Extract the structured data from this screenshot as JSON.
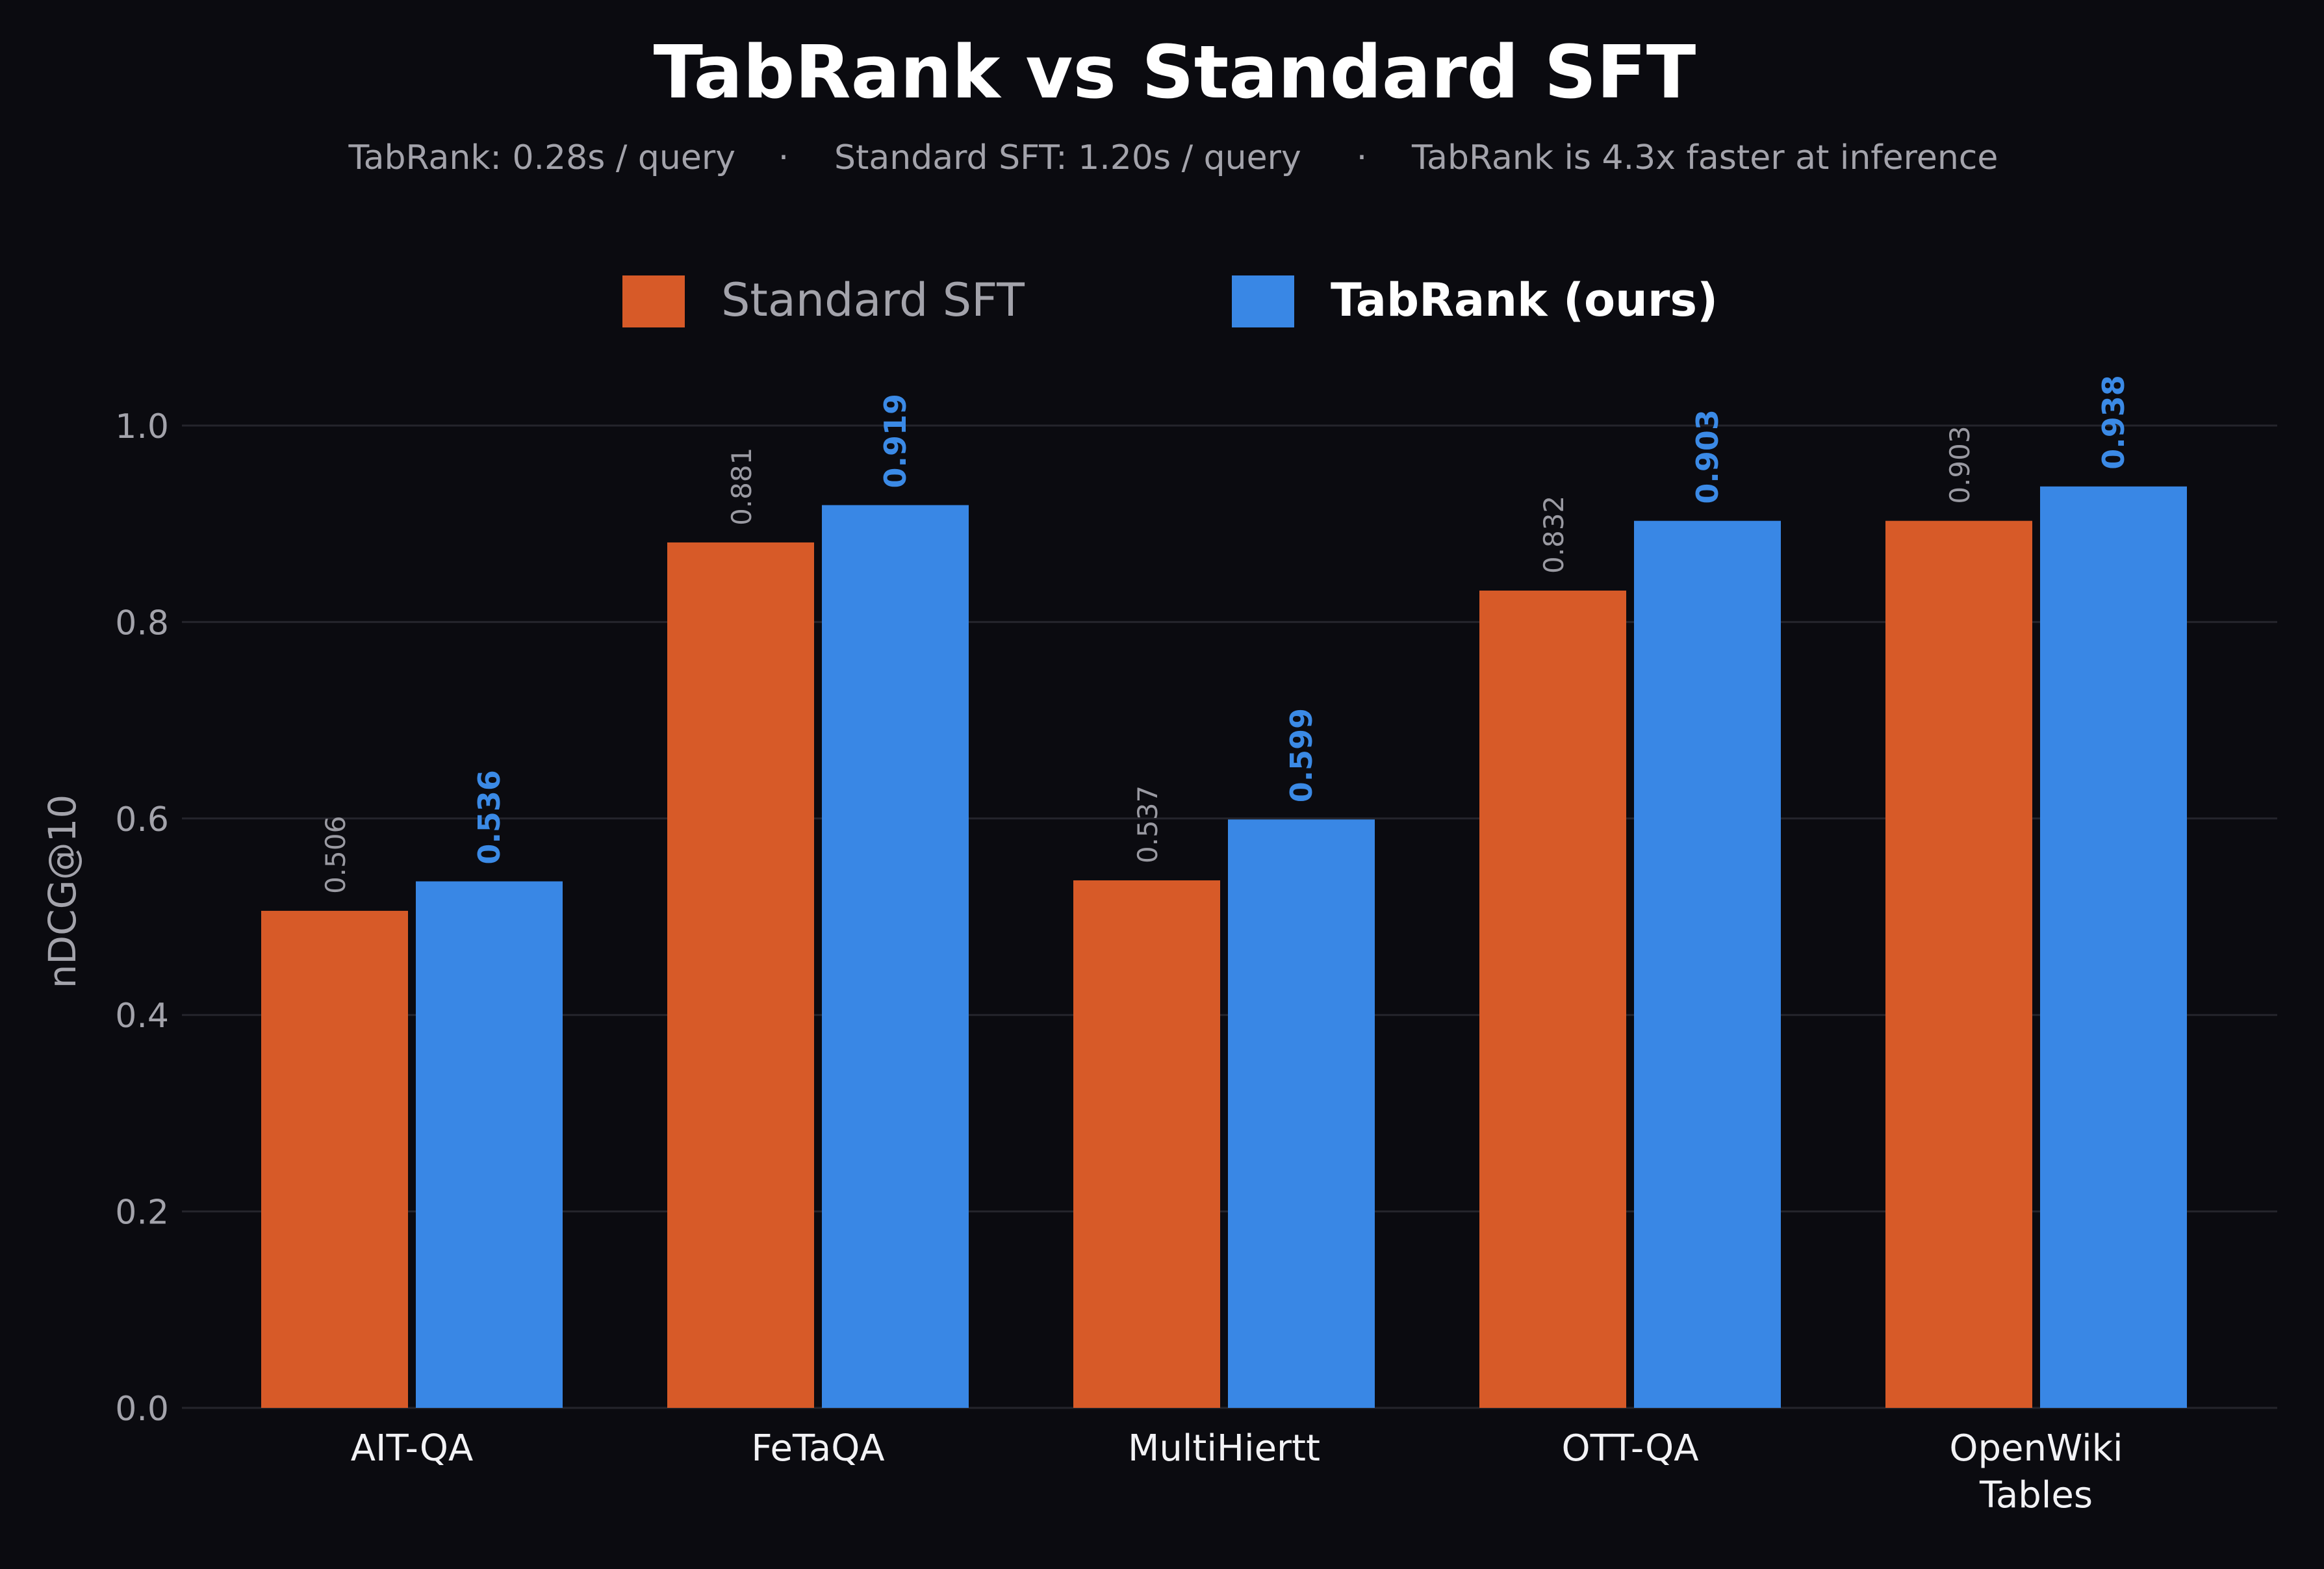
{
  "chart_data": {
    "type": "bar",
    "title": "TabRank vs Standard SFT",
    "subtitle": {
      "parts": [
        "TabRank: 0.28s / query",
        "·",
        "Standard SFT: 1.20s / query",
        "·",
        "TabRank is 4.3x faster at inference"
      ]
    },
    "ylabel": "nDCG@10",
    "xlabel": "",
    "ylim": [
      0,
      1.0
    ],
    "yticks": [
      "0.0",
      "0.2",
      "0.4",
      "0.6",
      "0.8",
      "1.0"
    ],
    "grid": true,
    "legend_position": "top-center",
    "categories": [
      [
        "AIT-QA"
      ],
      [
        "FeTaQA"
      ],
      [
        "MultiHiertt"
      ],
      [
        "OTT-QA"
      ],
      [
        "OpenWiki",
        "Tables"
      ]
    ],
    "series": [
      {
        "name": "Standard SFT",
        "color": "#d75a28",
        "values": [
          0.506,
          0.881,
          0.537,
          0.832,
          0.903
        ],
        "labels": [
          "0.506",
          "0.881",
          "0.537",
          "0.832",
          "0.903"
        ]
      },
      {
        "name": "TabRank (ours)",
        "color": "#3987e5",
        "values": [
          0.536,
          0.919,
          0.599,
          0.903,
          0.938
        ],
        "labels": [
          "0.536",
          "0.919",
          "0.599",
          "0.903",
          "0.938"
        ]
      }
    ],
    "colors": {
      "background": "#0b0b10",
      "grid": "#25252c"
    }
  }
}
